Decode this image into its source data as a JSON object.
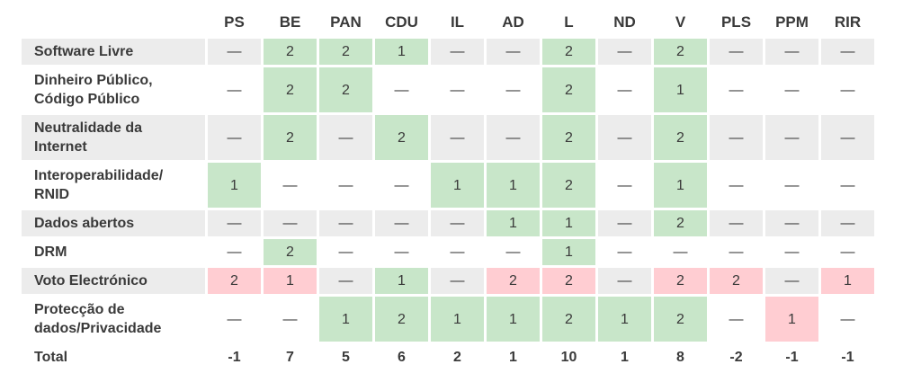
{
  "chart_data": {
    "type": "table",
    "title": "",
    "columns": [
      "PS",
      "BE",
      "PAN",
      "CDU",
      "IL",
      "AD",
      "L",
      "ND",
      "V",
      "PLS",
      "PPM",
      "RIR"
    ],
    "no_position_symbol": "—",
    "rows": [
      {
        "label": "Software Livre",
        "cells": [
          {
            "v": "—"
          },
          {
            "v": "2",
            "t": "pos"
          },
          {
            "v": "2",
            "t": "pos"
          },
          {
            "v": "1",
            "t": "pos"
          },
          {
            "v": "—"
          },
          {
            "v": "—"
          },
          {
            "v": "2",
            "t": "pos"
          },
          {
            "v": "—"
          },
          {
            "v": "2",
            "t": "pos"
          },
          {
            "v": "—"
          },
          {
            "v": "—"
          },
          {
            "v": "—"
          }
        ]
      },
      {
        "label": "Dinheiro Público,\nCódigo Público",
        "cells": [
          {
            "v": "—"
          },
          {
            "v": "2",
            "t": "pos"
          },
          {
            "v": "2",
            "t": "pos"
          },
          {
            "v": "—"
          },
          {
            "v": "—"
          },
          {
            "v": "—"
          },
          {
            "v": "2",
            "t": "pos"
          },
          {
            "v": "—"
          },
          {
            "v": "1",
            "t": "pos"
          },
          {
            "v": "—"
          },
          {
            "v": "—"
          },
          {
            "v": "—"
          }
        ]
      },
      {
        "label": "Neutralidade da\nInternet",
        "cells": [
          {
            "v": "—"
          },
          {
            "v": "2",
            "t": "pos"
          },
          {
            "v": "—"
          },
          {
            "v": "2",
            "t": "pos"
          },
          {
            "v": "—"
          },
          {
            "v": "—"
          },
          {
            "v": "2",
            "t": "pos"
          },
          {
            "v": "—"
          },
          {
            "v": "2",
            "t": "pos"
          },
          {
            "v": "—"
          },
          {
            "v": "—"
          },
          {
            "v": "—"
          }
        ]
      },
      {
        "label": "Interoperabilidade/\nRNID",
        "cells": [
          {
            "v": "1",
            "t": "pos"
          },
          {
            "v": "—"
          },
          {
            "v": "—"
          },
          {
            "v": "—"
          },
          {
            "v": "1",
            "t": "pos"
          },
          {
            "v": "1",
            "t": "pos"
          },
          {
            "v": "2",
            "t": "pos"
          },
          {
            "v": "—"
          },
          {
            "v": "1",
            "t": "pos"
          },
          {
            "v": "—"
          },
          {
            "v": "—"
          },
          {
            "v": "—"
          }
        ]
      },
      {
        "label": "Dados abertos",
        "cells": [
          {
            "v": "—"
          },
          {
            "v": "—"
          },
          {
            "v": "—"
          },
          {
            "v": "—"
          },
          {
            "v": "—"
          },
          {
            "v": "1",
            "t": "pos"
          },
          {
            "v": "1",
            "t": "pos"
          },
          {
            "v": "—"
          },
          {
            "v": "2",
            "t": "pos"
          },
          {
            "v": "—"
          },
          {
            "v": "—"
          },
          {
            "v": "—"
          }
        ]
      },
      {
        "label": "DRM",
        "cells": [
          {
            "v": "—"
          },
          {
            "v": "2",
            "t": "pos"
          },
          {
            "v": "—"
          },
          {
            "v": "—"
          },
          {
            "v": "—"
          },
          {
            "v": "—"
          },
          {
            "v": "1",
            "t": "pos"
          },
          {
            "v": "—"
          },
          {
            "v": "—"
          },
          {
            "v": "—"
          },
          {
            "v": "—"
          },
          {
            "v": "—"
          }
        ]
      },
      {
        "label": "Voto Electrónico",
        "cells": [
          {
            "v": "2",
            "t": "neg"
          },
          {
            "v": "1",
            "t": "neg"
          },
          {
            "v": "—"
          },
          {
            "v": "1",
            "t": "pos"
          },
          {
            "v": "—"
          },
          {
            "v": "2",
            "t": "neg"
          },
          {
            "v": "2",
            "t": "neg"
          },
          {
            "v": "—"
          },
          {
            "v": "2",
            "t": "neg"
          },
          {
            "v": "2",
            "t": "neg"
          },
          {
            "v": "—"
          },
          {
            "v": "1",
            "t": "neg"
          }
        ]
      },
      {
        "label": "Protecção de\ndados/Privacidade",
        "cells": [
          {
            "v": "—"
          },
          {
            "v": "—"
          },
          {
            "v": "1",
            "t": "pos"
          },
          {
            "v": "2",
            "t": "pos"
          },
          {
            "v": "1",
            "t": "pos"
          },
          {
            "v": "1",
            "t": "pos"
          },
          {
            "v": "2",
            "t": "pos"
          },
          {
            "v": "1",
            "t": "pos"
          },
          {
            "v": "2",
            "t": "pos"
          },
          {
            "v": "—"
          },
          {
            "v": "1",
            "t": "neg"
          },
          {
            "v": "—"
          }
        ]
      }
    ],
    "total": {
      "label": "Total",
      "values": [
        "-1",
        "7",
        "5",
        "6",
        "2",
        "1",
        "10",
        "1",
        "8",
        "-2",
        "-1",
        "-1"
      ]
    },
    "colors": {
      "positive_cell": "#c8e6c9",
      "negative_cell": "#ffcdd2",
      "row_stripe": "#ececec",
      "text": "#3a3a3a"
    },
    "layout": {
      "legend": "none",
      "grid": "off",
      "stripe_pattern": "odd-rows-gray"
    }
  }
}
